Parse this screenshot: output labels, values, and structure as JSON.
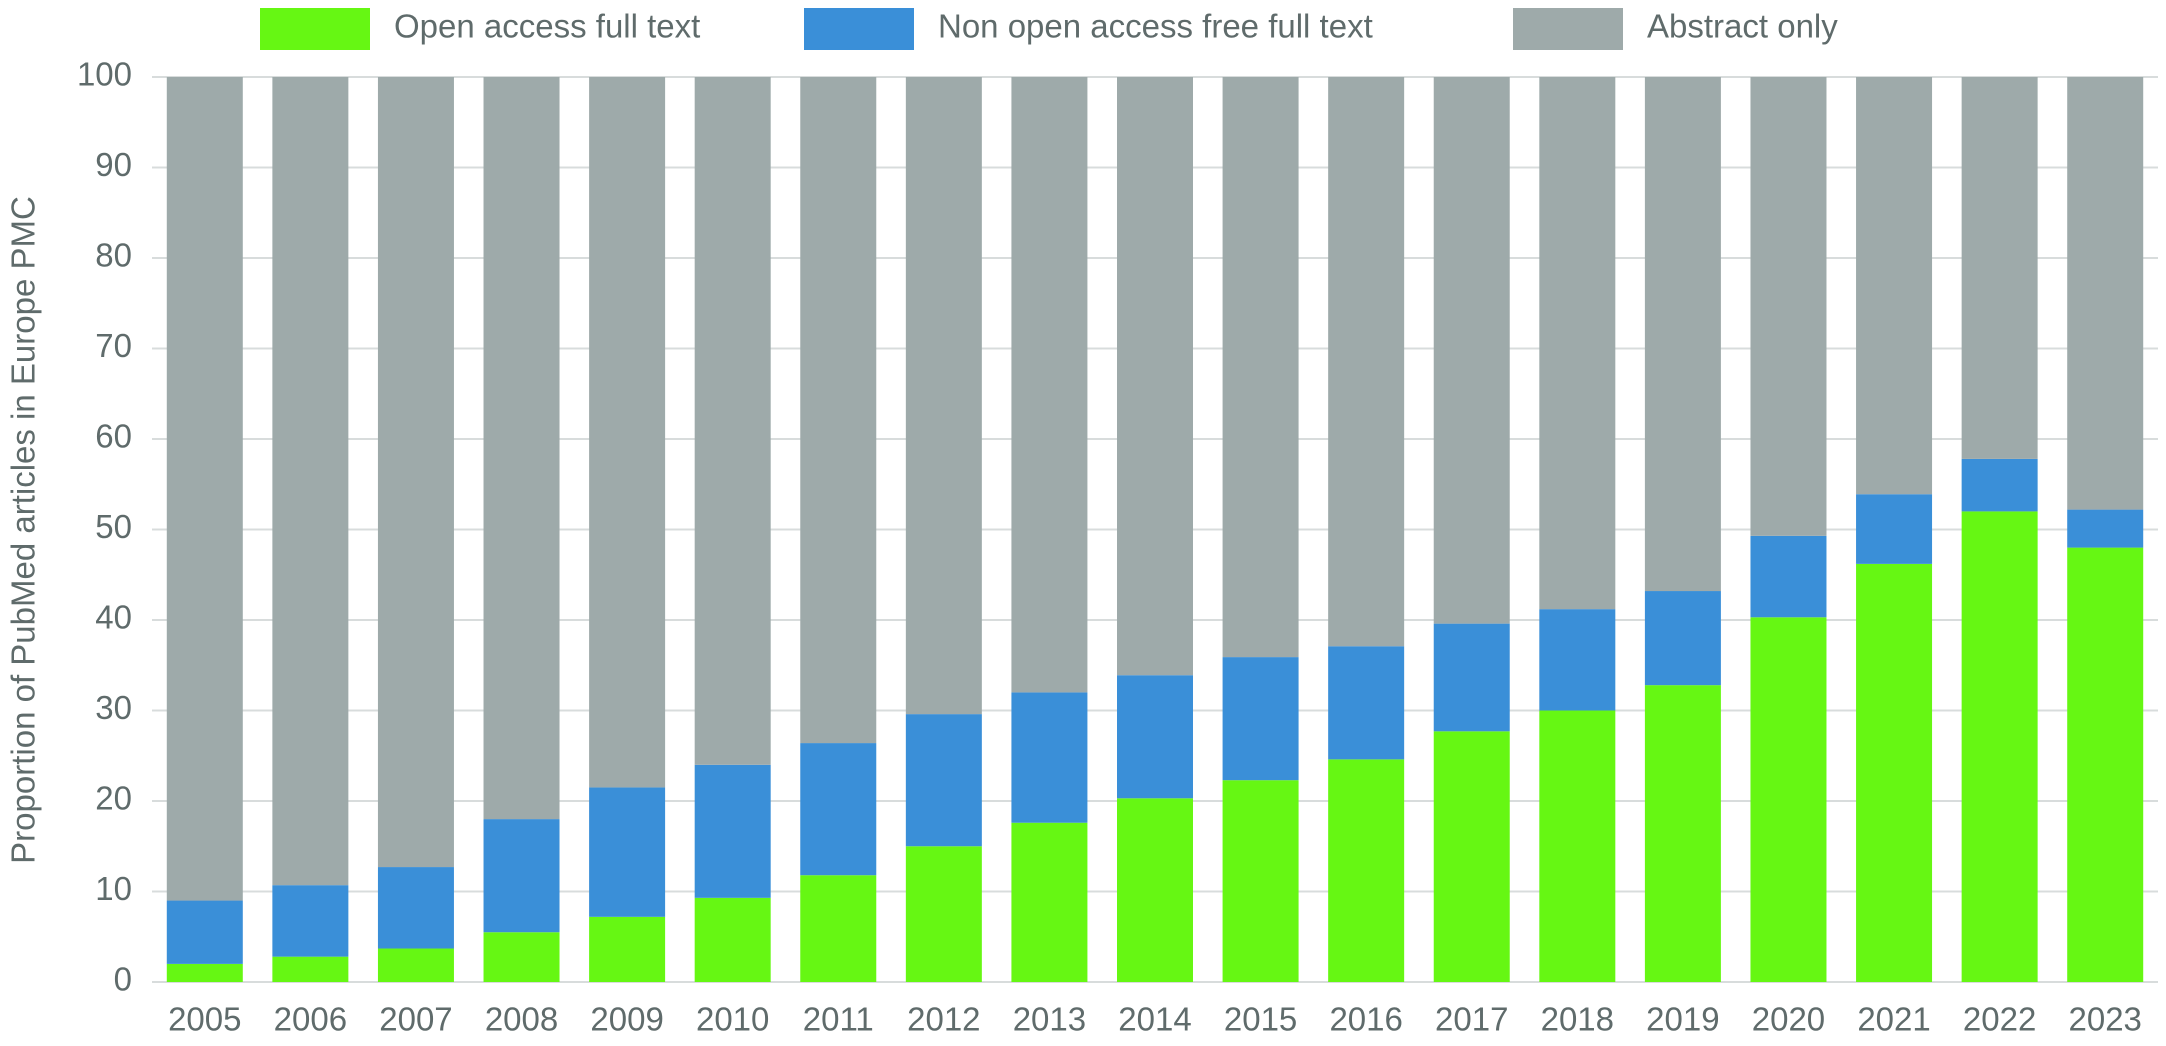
{
  "chart_data": {
    "type": "stacked_bar",
    "y_label": "Proportion of PubMed articles in Europe PMC",
    "categories": [
      "2005",
      "2006",
      "2007",
      "2008",
      "2009",
      "2010",
      "2011",
      "2012",
      "2013",
      "2014",
      "2015",
      "2016",
      "2017",
      "2018",
      "2019",
      "2020",
      "2021",
      "2022",
      "2023"
    ],
    "series": [
      {
        "name": "Open access full text",
        "color": "#66f713",
        "values": [
          2,
          2.8,
          3.7,
          5.5,
          7.2,
          9.3,
          11.8,
          15,
          17.6,
          20.3,
          22.3,
          24.6,
          27.7,
          30,
          32.8,
          40.3,
          46.2,
          52,
          48
        ]
      },
      {
        "name": "Non open access free full text",
        "color": "#3a8fd8",
        "values": [
          7,
          7.9,
          9,
          12.5,
          14.3,
          14.7,
          14.6,
          14.6,
          14.4,
          13.6,
          13.6,
          12.5,
          11.9,
          11.2,
          10.4,
          9,
          7.7,
          5.8,
          4.2
        ]
      },
      {
        "name": "Abstract only",
        "color": "#9eaaaa",
        "values": [
          91,
          89.3,
          87.3,
          82,
          78.5,
          76,
          73.6,
          70.4,
          68,
          66.1,
          64.1,
          62.9,
          60.4,
          58.8,
          56.8,
          50.7,
          46.1,
          42.2,
          47.8
        ]
      }
    ],
    "ylim": [
      0,
      100
    ],
    "yticks": [
      0,
      10,
      20,
      30,
      40,
      50,
      60,
      70,
      80,
      90,
      100
    ],
    "grid": true,
    "legend": "top"
  }
}
